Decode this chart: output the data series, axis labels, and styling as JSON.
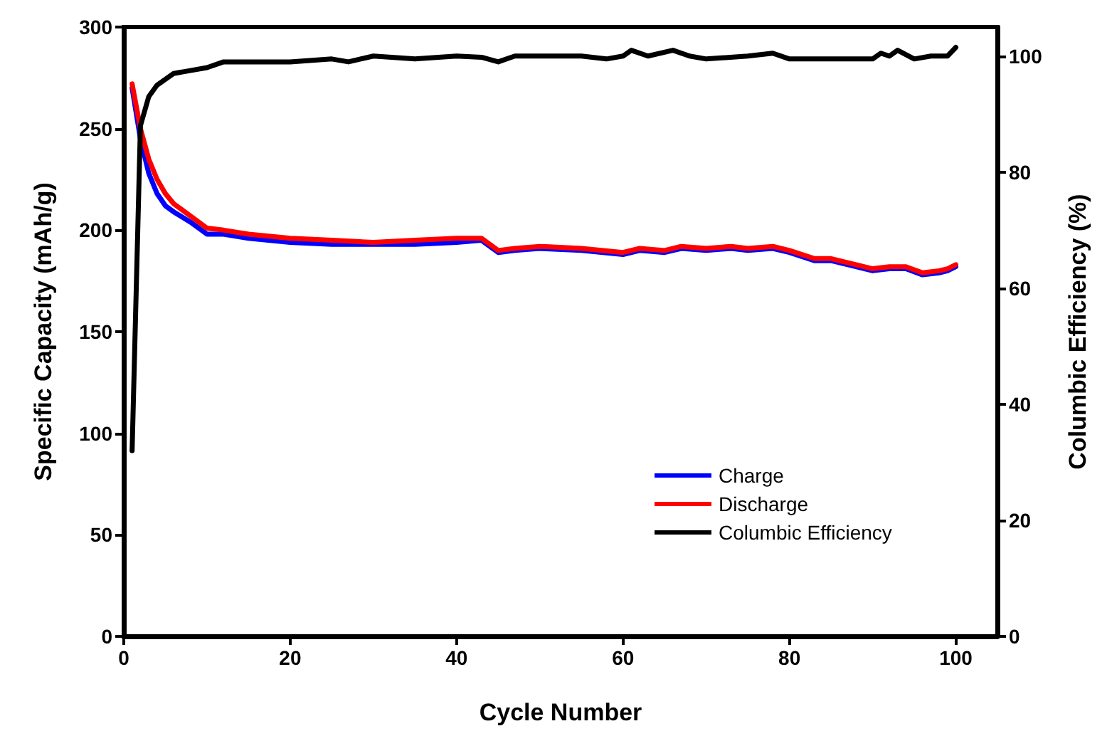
{
  "chart_data": {
    "type": "line",
    "xlabel": "Cycle Number",
    "ylabel": "Specific Capacity (mAh/g)",
    "y2label": "Columbic Efficiency (%)",
    "xlim": [
      0,
      105
    ],
    "xticks": [
      0,
      20,
      40,
      60,
      80,
      100
    ],
    "ylim": [
      0,
      300
    ],
    "yticks": [
      0,
      50,
      100,
      150,
      200,
      250,
      300
    ],
    "y2lim": [
      0,
      105
    ],
    "y2ticks": [
      0,
      20,
      40,
      60,
      80,
      100
    ],
    "grid": false,
    "legend": "bottom right",
    "marker": "none",
    "line_style": "solid",
    "series": [
      {
        "name": "Charge",
        "color": "#0000ff",
        "x": [
          1,
          2,
          3,
          4,
          5,
          6,
          8,
          10,
          12,
          15,
          20,
          25,
          30,
          35,
          40,
          43,
          45,
          47,
          50,
          55,
          60,
          62,
          65,
          67,
          70,
          73,
          75,
          78,
          80,
          83,
          85,
          88,
          90,
          92,
          94,
          96,
          98,
          99,
          100
        ],
        "values": [
          270,
          245,
          228,
          218,
          212,
          209,
          204,
          198,
          198,
          196,
          194,
          193,
          193,
          193,
          194,
          195,
          189,
          190,
          191,
          190,
          188,
          190,
          189,
          191,
          190,
          191,
          190,
          191,
          189,
          185,
          185,
          182,
          180,
          181,
          181,
          178,
          179,
          180,
          182
        ]
      },
      {
        "name": "Discharge",
        "color": "#ff0000",
        "x": [
          1,
          2,
          3,
          4,
          5,
          6,
          8,
          10,
          12,
          15,
          20,
          25,
          30,
          35,
          40,
          43,
          45,
          47,
          50,
          55,
          60,
          62,
          65,
          67,
          70,
          73,
          75,
          78,
          80,
          83,
          85,
          88,
          90,
          92,
          94,
          96,
          98,
          99,
          100
        ],
        "values": [
          272,
          250,
          235,
          225,
          218,
          213,
          207,
          201,
          200,
          198,
          196,
          195,
          194,
          195,
          196,
          196,
          190,
          191,
          192,
          191,
          189,
          191,
          190,
          192,
          191,
          192,
          191,
          192,
          190,
          186,
          186,
          183,
          181,
          182,
          182,
          179,
          180,
          181,
          183
        ]
      },
      {
        "name": "Columbic Efficiency",
        "color": "#000000",
        "axis": "y2",
        "x": [
          1,
          2,
          3,
          4,
          6,
          8,
          10,
          12,
          20,
          25,
          27,
          30,
          35,
          40,
          43,
          45,
          47,
          50,
          55,
          58,
          60,
          61,
          63,
          66,
          68,
          70,
          75,
          78,
          80,
          85,
          90,
          91,
          92,
          93,
          95,
          97,
          99,
          100
        ],
        "values": [
          32,
          88,
          93,
          95,
          97,
          97.5,
          98,
          99,
          99,
          99.5,
          99,
          100,
          99.5,
          100,
          99.8,
          99,
          100,
          100,
          100,
          99.5,
          100,
          101,
          100,
          101,
          100,
          99.5,
          100,
          100.5,
          99.5,
          99.5,
          99.5,
          100.5,
          100,
          101,
          99.5,
          100,
          100,
          101.5
        ]
      }
    ]
  }
}
